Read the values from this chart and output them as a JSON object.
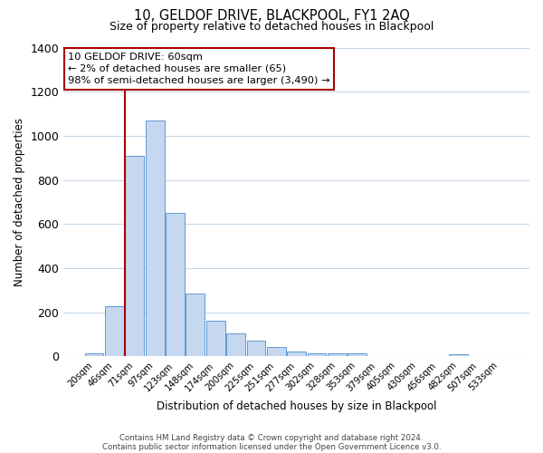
{
  "title": "10, GELDOF DRIVE, BLACKPOOL, FY1 2AQ",
  "subtitle": "Size of property relative to detached houses in Blackpool",
  "xlabel": "Distribution of detached houses by size in Blackpool",
  "ylabel": "Number of detached properties",
  "bar_labels": [
    "20sqm",
    "46sqm",
    "71sqm",
    "97sqm",
    "123sqm",
    "148sqm",
    "174sqm",
    "200sqm",
    "225sqm",
    "251sqm",
    "277sqm",
    "302sqm",
    "328sqm",
    "353sqm",
    "379sqm",
    "405sqm",
    "430sqm",
    "456sqm",
    "482sqm",
    "507sqm",
    "533sqm"
  ],
  "bar_values": [
    15,
    225,
    910,
    1070,
    650,
    285,
    160,
    105,
    70,
    40,
    20,
    15,
    15,
    15,
    0,
    0,
    0,
    0,
    10,
    0,
    0
  ],
  "bar_color": "#c5d8f0",
  "bar_edge_color": "#5b9bd5",
  "vline_x_idx": 1.5,
  "vline_color": "#aa0000",
  "annotation_text": "10 GELDOF DRIVE: 60sqm\n← 2% of detached houses are smaller (65)\n98% of semi-detached houses are larger (3,490) →",
  "annotation_box_color": "#ffffff",
  "annotation_box_edge": "#aa0000",
  "ylim": [
    0,
    1400
  ],
  "yticks": [
    0,
    200,
    400,
    600,
    800,
    1000,
    1200,
    1400
  ],
  "footer_line1": "Contains HM Land Registry data © Crown copyright and database right 2024.",
  "footer_line2": "Contains public sector information licensed under the Open Government Licence v3.0.",
  "background_color": "#ffffff",
  "grid_color": "#c8d8e8"
}
